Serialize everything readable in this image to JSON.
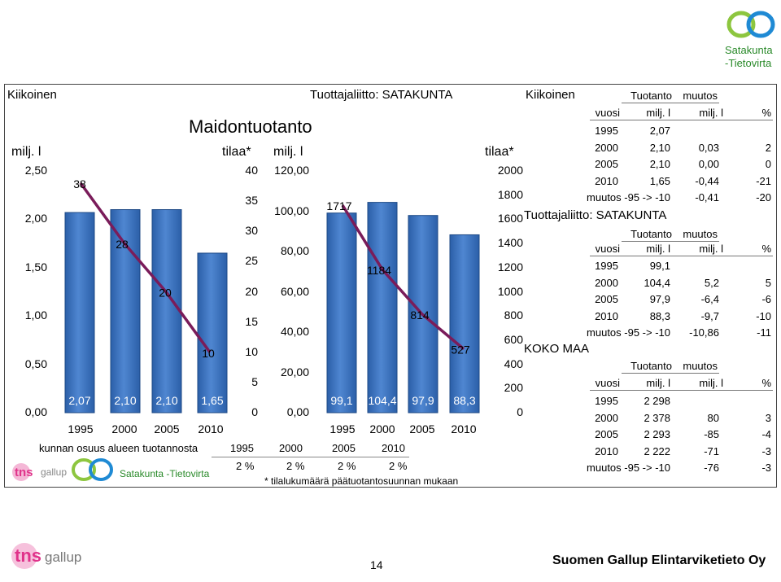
{
  "brand": {
    "logo_text_line1": "Satakunta",
    "logo_text_line2": "-Tietovirta",
    "tns_text": "tns",
    "gallup_text": "gallup",
    "small_brand": "Satakunta -Tietovirta",
    "green": "#8dc63f",
    "blue": "#1f8ad4",
    "pink": "#e0328a"
  },
  "headers": {
    "kiikoinen_left": "Kiikoinen",
    "tuottajaliitto": "Tuottajaliitto: SATAKUNTA",
    "kiikoinen_right": "Kiikoinen"
  },
  "chart_data": [
    {
      "type": "bar",
      "title": "Maidontuotanto",
      "ylabel": "milj. l",
      "ylabel2": "tilaa*",
      "categories": [
        "1995",
        "2000",
        "2005",
        "2010"
      ],
      "values": [
        2.07,
        2.1,
        2.1,
        1.65
      ],
      "value_labels": [
        "2,07",
        "2,10",
        "2,10",
        "1,65"
      ],
      "ylim": [
        0,
        2.5
      ],
      "yticks": [
        "0,00",
        "0,50",
        "1,00",
        "1,50",
        "2,00",
        "2,50"
      ],
      "line_series": {
        "name": "tilaa*",
        "values": [
          38,
          28,
          20,
          10
        ],
        "labels": [
          "38",
          "28",
          "20",
          "10"
        ]
      },
      "y2lim": [
        0,
        40
      ],
      "y2ticks": [
        "0",
        "5",
        "10",
        "15",
        "20",
        "25",
        "30",
        "35",
        "40"
      ]
    },
    {
      "type": "bar",
      "ylabel": "milj. l",
      "ylabel2": "tilaa*",
      "categories": [
        "1995",
        "2000",
        "2005",
        "2010"
      ],
      "values": [
        99.1,
        104.4,
        97.9,
        88.3
      ],
      "value_labels": [
        "99,1",
        "104,4",
        "97,9",
        "88,3"
      ],
      "ylim": [
        0,
        120
      ],
      "yticks": [
        "0,00",
        "20,00",
        "40,00",
        "60,00",
        "80,00",
        "100,00",
        "120,00"
      ],
      "line_series": {
        "name": "tilaa*",
        "values": [
          1717,
          1184,
          814,
          527
        ],
        "labels": [
          "1717",
          "1184",
          "814",
          "527"
        ]
      },
      "y2lim": [
        0,
        2000
      ],
      "y2ticks": [
        "0",
        "200",
        "400",
        "600",
        "800",
        "1000",
        "1200",
        "1400",
        "1600",
        "1800",
        "2000"
      ]
    }
  ],
  "share_row": {
    "label": "kunnan osuus alueen tuotannosta",
    "years": [
      "1995",
      "2000",
      "2005",
      "2010"
    ],
    "values": [
      "2 %",
      "2 %",
      "2 %",
      "2 %"
    ]
  },
  "footnote": "* tilalukumäärä päätuotantosuunnan mukaan",
  "tables": [
    {
      "title": "",
      "head1": [
        "Tuotanto",
        "muutos"
      ],
      "head2": [
        "vuosi",
        "milj. l",
        "milj. l",
        "%"
      ],
      "rows": [
        [
          "1995",
          "2,07",
          "",
          ""
        ],
        [
          "2000",
          "2,10",
          "0,03",
          "2"
        ],
        [
          "2005",
          "2,10",
          "0,00",
          "0"
        ],
        [
          "2010",
          "1,65",
          "-0,44",
          "-21"
        ]
      ],
      "summary": [
        "muutos -95 -> -10",
        "-0,41",
        "-20"
      ]
    },
    {
      "title": "Tuottajaliitto: SATAKUNTA",
      "head1": [
        "Tuotanto",
        "muutos"
      ],
      "head2": [
        "vuosi",
        "milj. l",
        "milj. l",
        "%"
      ],
      "rows": [
        [
          "1995",
          "99,1",
          "",
          ""
        ],
        [
          "2000",
          "104,4",
          "5,2",
          "5"
        ],
        [
          "2005",
          "97,9",
          "-6,4",
          "-6"
        ],
        [
          "2010",
          "88,3",
          "-9,7",
          "-10"
        ]
      ],
      "summary": [
        "muutos -95 -> -10",
        "-10,86",
        "-11"
      ]
    },
    {
      "title": "KOKO MAA",
      "head1": [
        "Tuotanto",
        "muutos"
      ],
      "head2": [
        "vuosi",
        "milj. l",
        "milj. l",
        "%"
      ],
      "rows": [
        [
          "1995",
          "2 298",
          "",
          ""
        ],
        [
          "2000",
          "2 378",
          "80",
          "3"
        ],
        [
          "2005",
          "2 293",
          "-85",
          "-4"
        ],
        [
          "2010",
          "2 222",
          "-71",
          "-3"
        ]
      ],
      "summary": [
        "muutos -95 -> -10",
        "-76",
        "-3"
      ]
    }
  ],
  "footer": {
    "page_number": "14",
    "company": "Suomen Gallup Elintarviketieto Oy"
  }
}
